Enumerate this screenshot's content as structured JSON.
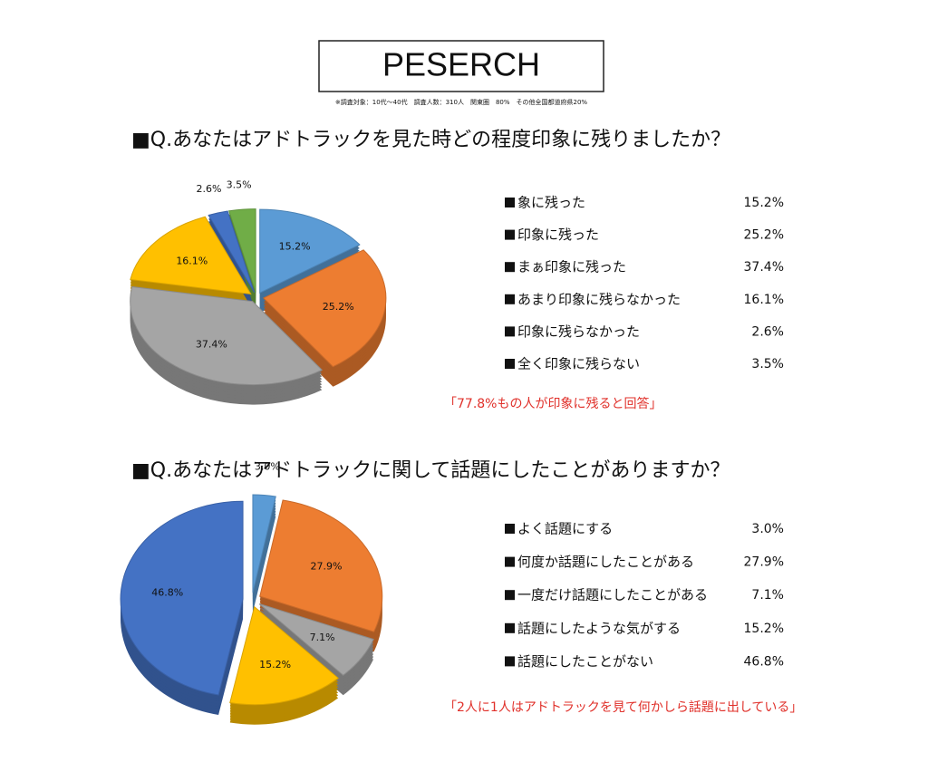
{
  "header": {
    "title": "PESERCH",
    "note": "※調査対象：10代〜40代　調査人数：310人　関東圏　80%　その他全国都道府県20%"
  },
  "chart_data": [
    {
      "type": "pie",
      "title": "■Q.あなたはアドトラックを見た時どの程度印象に残りましたか？",
      "categories": [
        "象に残った",
        "印象に残った",
        "まぁ印象に残った",
        "あまり印象に残らなかった",
        "印象に残らなかった",
        "全く印象に残らない"
      ],
      "values": [
        15.2,
        25.2,
        37.4,
        16.1,
        2.6,
        3.5
      ],
      "value_labels": [
        "15.2%",
        "25.2%",
        "37.4%",
        "16.1%",
        "2.6%",
        "3.5%"
      ],
      "colors": [
        "#5b9bd5",
        "#ed7d31",
        "#a5a5a5",
        "#ffc000",
        "#4472c4",
        "#70ad47"
      ],
      "annotation": "「77.8%もの人が印象に残ると回答」"
    },
    {
      "type": "pie",
      "title": "■Q.あなたはアドトラックに関して話題にしたことがありますか？",
      "categories": [
        "よく話題にする",
        "何度か話題にしたことがある",
        "一度だけ話題にしたことがある",
        "話題にしたような気がする",
        "話題にしたことがない"
      ],
      "values": [
        3.0,
        27.9,
        7.1,
        15.2,
        46.8
      ],
      "value_labels": [
        "3.0%",
        "27.9%",
        "7.1%",
        "15.2%",
        "46.8%"
      ],
      "colors": [
        "#5b9bd5",
        "#ed7d31",
        "#a5a5a5",
        "#ffc000",
        "#4472c4"
      ],
      "annotation": "「2人に1人はアドトラックを見て何かしら話題に出している」"
    }
  ]
}
